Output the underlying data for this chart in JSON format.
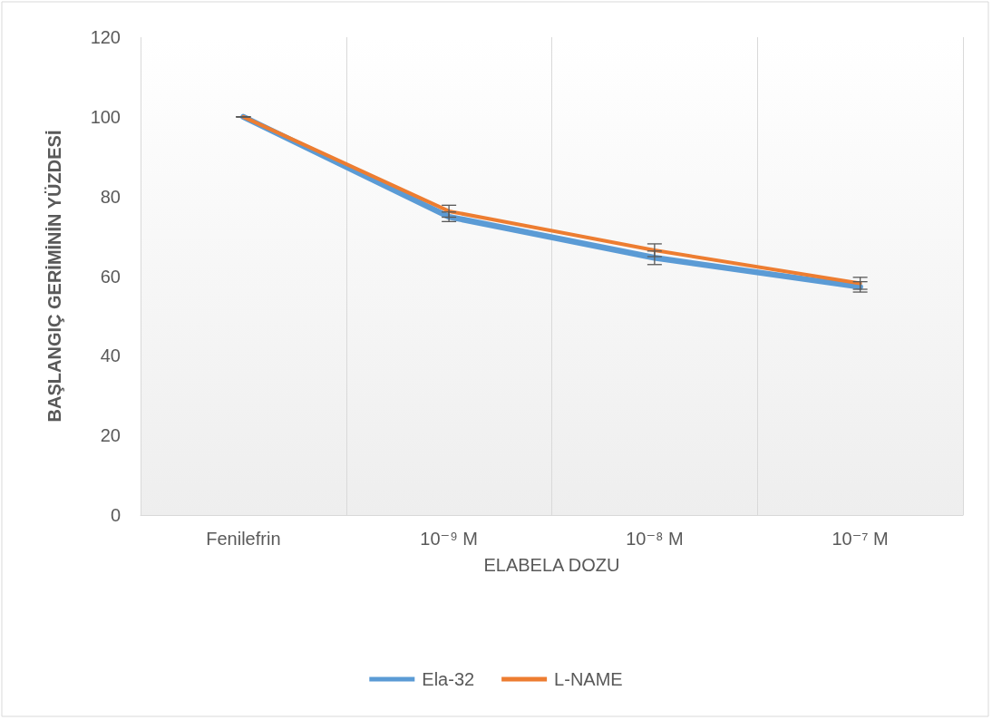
{
  "chart_data": {
    "type": "line",
    "xlabel": "ELABELA DOZU",
    "ylabel": "BAŞLANGIÇ GERİMİNİN YÜZDESİ",
    "categories": [
      "Fenilefrin",
      "10⁻⁹ M",
      "10⁻⁸ M",
      "10⁻⁷ M"
    ],
    "series": [
      {
        "name": "Ela-32",
        "color": "#5b9bd5",
        "values": [
          100,
          74.9,
          64.6,
          57.3
        ],
        "errors": [
          0,
          1.2,
          1.7,
          1.3
        ]
      },
      {
        "name": "L-NAME",
        "color": "#ed7d31",
        "values": [
          100,
          76.3,
          66.5,
          58.2
        ],
        "errors": [
          0,
          1.5,
          1.6,
          1.5
        ]
      }
    ],
    "ylim": [
      0,
      120
    ],
    "yticks": [
      0,
      20,
      40,
      60,
      80,
      100,
      120
    ],
    "grid": "x",
    "legend": "bottom",
    "marker": "none",
    "line_style": "solid"
  }
}
